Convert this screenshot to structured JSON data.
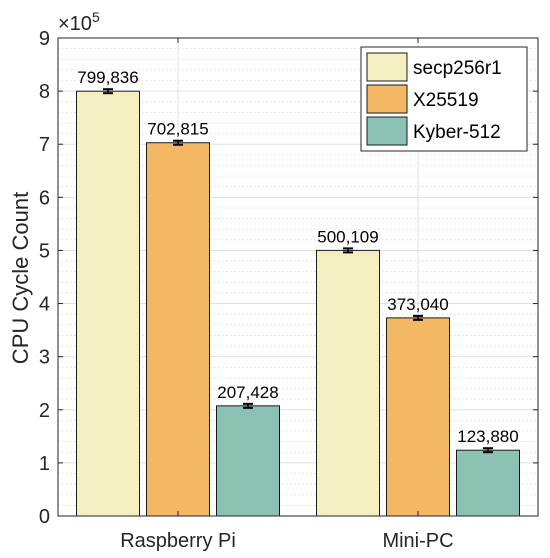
{
  "chart_data": {
    "type": "bar",
    "categories": [
      "Raspberry Pi",
      "Mini-PC"
    ],
    "series": [
      {
        "name": "secp256r1",
        "values": [
          799836,
          500109
        ],
        "labels": [
          "799,836",
          "500,109"
        ],
        "color": "#F3EFC0"
      },
      {
        "name": "X25519",
        "values": [
          702815,
          373040
        ],
        "labels": [
          "702,815",
          "373,040"
        ],
        "color": "#F4B763"
      },
      {
        "name": "Kyber-512",
        "values": [
          207428,
          123880
        ],
        "labels": [
          "207,428",
          "123,880"
        ],
        "color": "#8CC2B3"
      }
    ],
    "ylabel": "CPU Cycle Count",
    "y_exponent_base": "×10",
    "y_exponent_power": "5",
    "yticks": [
      "0",
      "1",
      "2",
      "3",
      "4",
      "5",
      "6",
      "7",
      "8",
      "9"
    ],
    "ylim": [
      0,
      900000
    ],
    "tick_scale": 100000,
    "grid": true,
    "minor_grid": true,
    "error_bars": true,
    "legend_position": "top-right"
  }
}
